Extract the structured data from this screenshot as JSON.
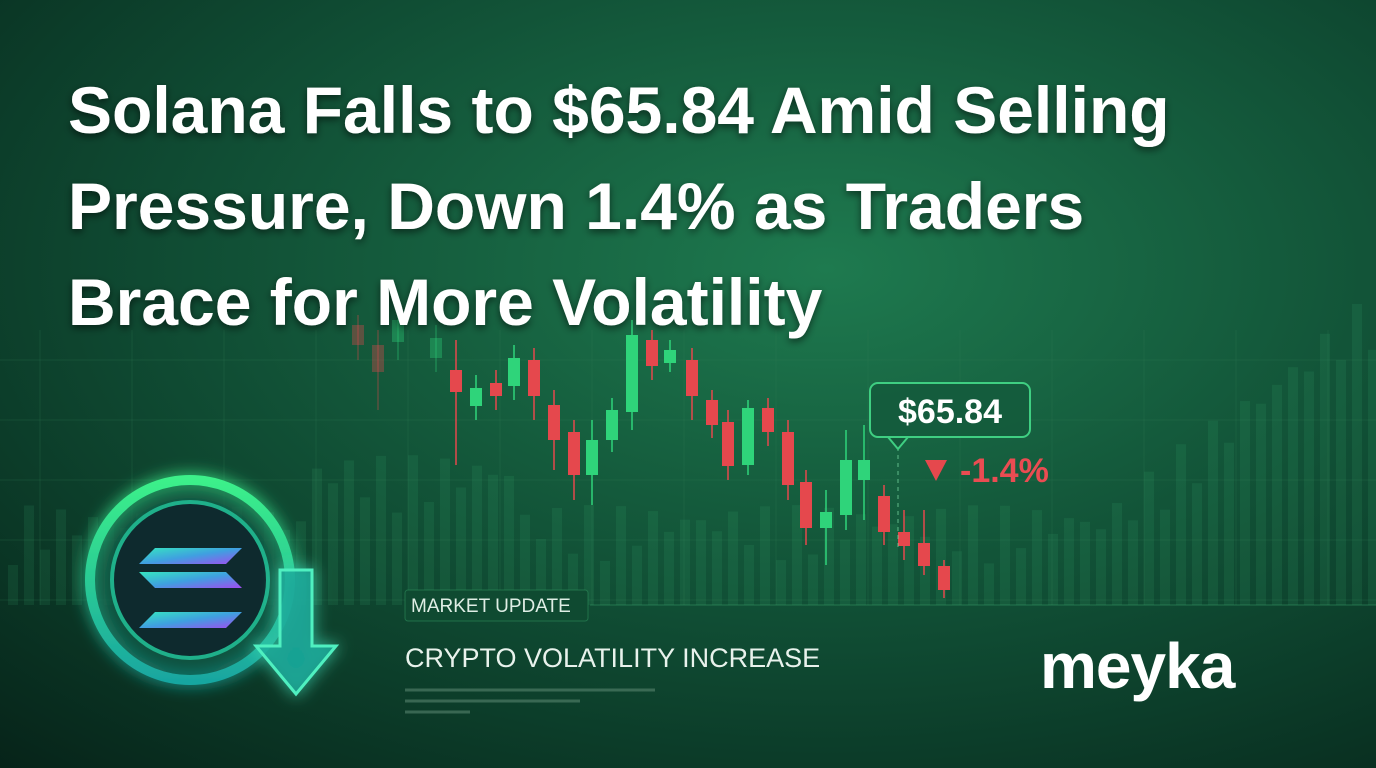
{
  "headline": {
    "lines": [
      "Solana Falls to $65.84 Amid Selling",
      "Pressure, Down 1.4% as Traders",
      "Brace for More Volatility"
    ]
  },
  "price_tag": "$65.84",
  "change": "-1.4%",
  "badge": "MARKET UPDATE",
  "subheadline": "CRYPTO VOLATILITY INCREASE",
  "brand": "meyka"
}
